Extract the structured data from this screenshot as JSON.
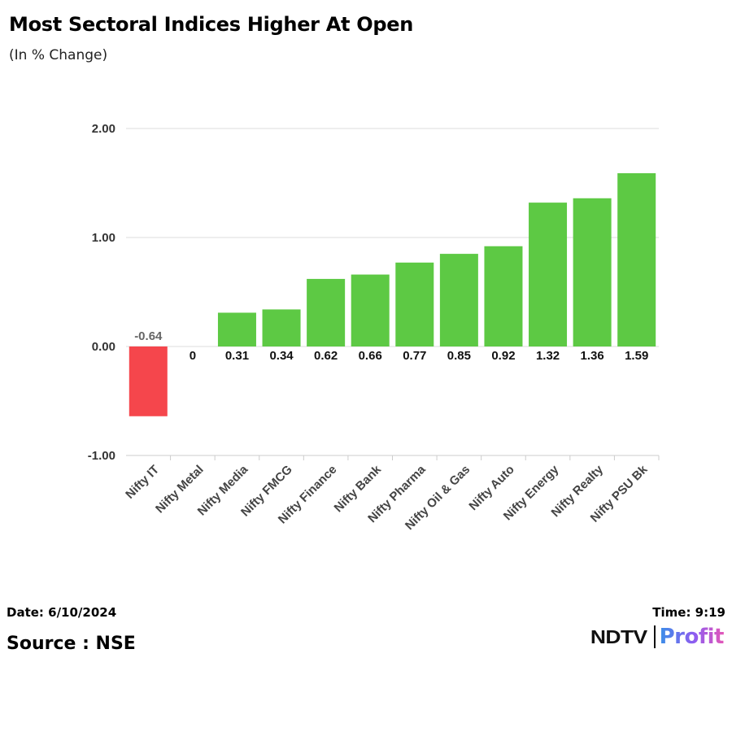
{
  "header": {
    "title": "Most Sectoral Indices Higher At Open",
    "subtitle": "(In % Change)"
  },
  "footer": {
    "date": "Date: 6/10/2024",
    "time": "Time: 9:19",
    "source": "Source : NSE",
    "logo_ndtv": "NDTV",
    "logo_profit": "Profit"
  },
  "chart_data": {
    "type": "bar",
    "title": "Most Sectoral Indices Higher At Open",
    "subtitle": "(In % Change)",
    "xlabel": "",
    "ylabel": "",
    "ylim": [
      -1.0,
      2.0
    ],
    "yticks": [
      -1.0,
      0.0,
      1.0,
      2.0
    ],
    "ytick_labels": [
      "-1.00",
      "0.00",
      "1.00",
      "2.00"
    ],
    "grid": true,
    "legend": "none",
    "categories": [
      "Nifty IT",
      "Nifty Metal",
      "Nifty Media",
      "Nifty FMCG",
      "Nifty Finance",
      "Nifty Bank",
      "Nifty Pharma",
      "Nifty Oil & Gas",
      "Nifty Auto",
      "Nifty Energy",
      "Nifty Realty",
      "Nifty PSU Bk"
    ],
    "values": [
      -0.64,
      0,
      0.31,
      0.34,
      0.62,
      0.66,
      0.77,
      0.85,
      0.92,
      1.32,
      1.36,
      1.59
    ],
    "value_labels": [
      "-0.64",
      "0",
      "0.31",
      "0.34",
      "0.62",
      "0.66",
      "0.77",
      "0.85",
      "0.92",
      "1.32",
      "1.36",
      "1.59"
    ],
    "colors": {
      "positive": "#5dc944",
      "negative": "#f5464c",
      "grid": "#dcdcdc",
      "axis": "#cccccc",
      "negative_label": "#666666"
    }
  }
}
